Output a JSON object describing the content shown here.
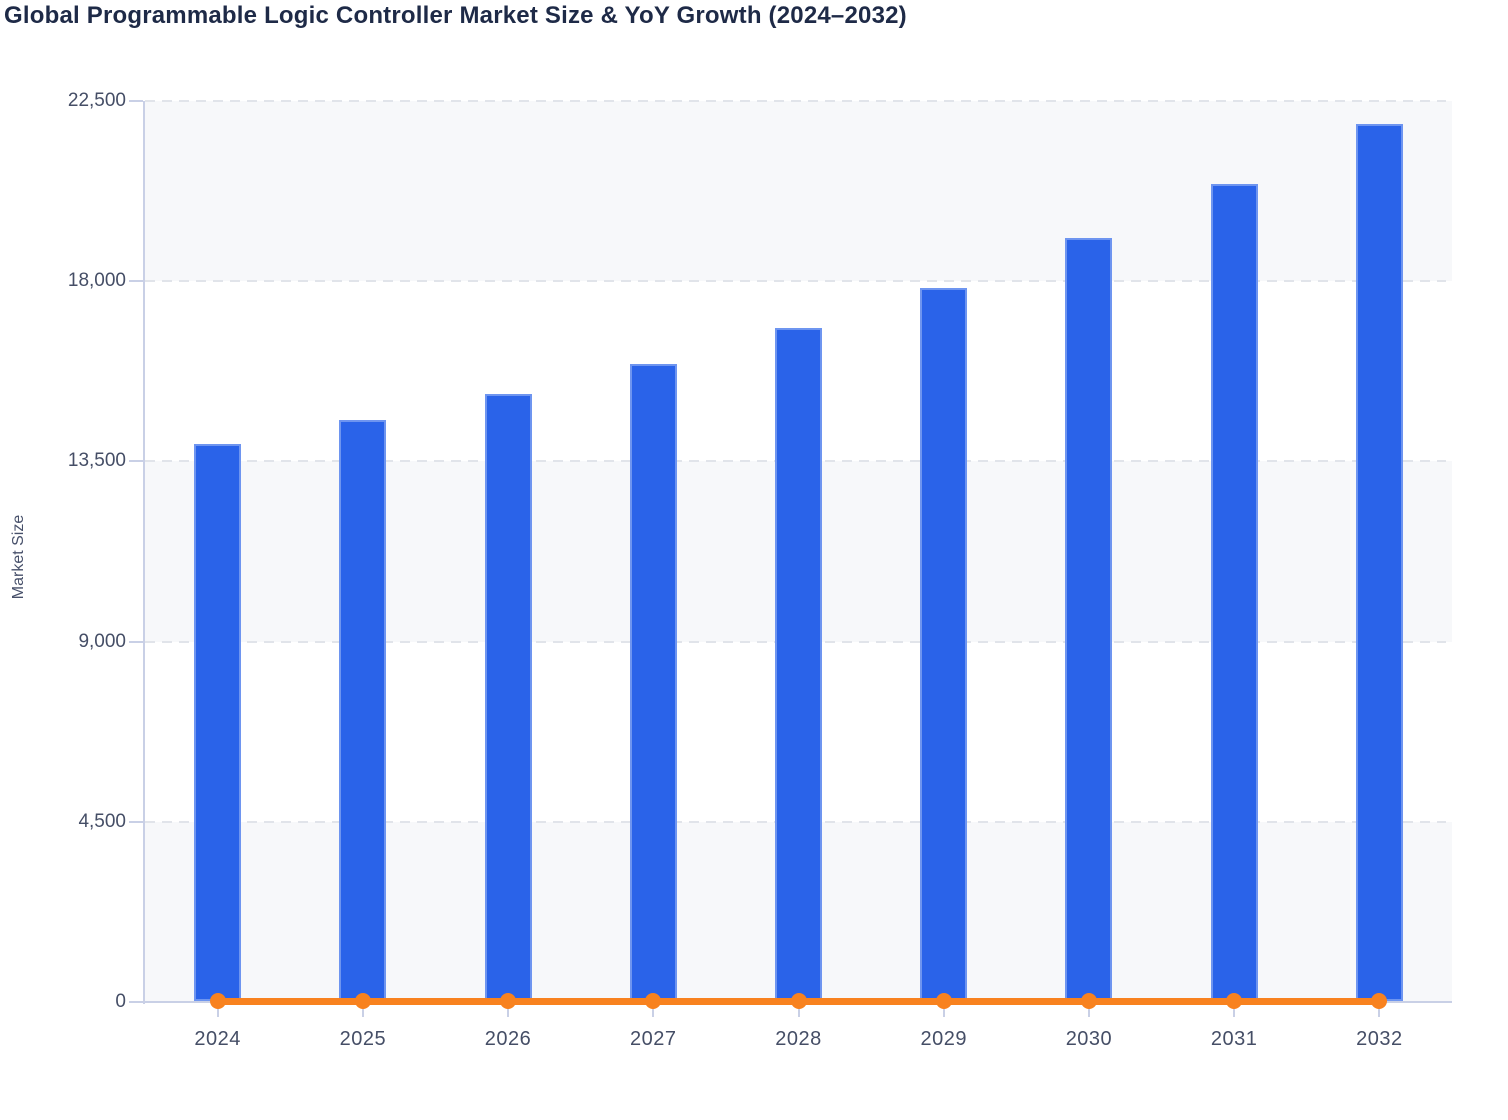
{
  "title": "Global Programmable Logic Controller Market Size & YoY Growth (2024–2032)",
  "chart_data": {
    "type": "bar",
    "title": "Global Programmable Logic Controller Market Size & YoY Growth (2024–2032)",
    "xlabel": "",
    "ylabel": "Market Size",
    "categories": [
      "2024",
      "2025",
      "2026",
      "2027",
      "2028",
      "2029",
      "2030",
      "2031",
      "2032"
    ],
    "series": [
      {
        "name": "Market Size",
        "type": "bar",
        "color": "#2a63e9",
        "values": [
          13900,
          14500,
          15150,
          15900,
          16800,
          17800,
          19050,
          20400,
          21900
        ]
      },
      {
        "name": "YoY Growth",
        "type": "line",
        "color": "#f8821f",
        "values": [
          0,
          0,
          0,
          0,
          0,
          0,
          0,
          0,
          0
        ],
        "note": "line with round markers rendered along the zero baseline of the Market Size axis; no secondary axis or growth value labels are visible"
      }
    ],
    "ylim": [
      0,
      22500
    ],
    "yticks": [
      0,
      4500,
      9000,
      13500,
      18000,
      22500
    ],
    "ytick_labels": [
      "0",
      "4,500",
      "9,000",
      "13,500",
      "18,000",
      "22,500"
    ],
    "grid": "horizontal dashed gridlines",
    "legend_position": "none",
    "plot_band_colors": [
      "#f7f8fa",
      "#ffffff"
    ]
  },
  "colors": {
    "bar_blue": "#2a63e9",
    "line_orange": "#f8821f",
    "axis_line": "#c9d0e6",
    "gridline": "#e1e4ea",
    "band_gray": "#f7f8fa",
    "band_white": "#ffffff",
    "tick_label_text": "#454e66",
    "title_text": "#1e2a47"
  }
}
